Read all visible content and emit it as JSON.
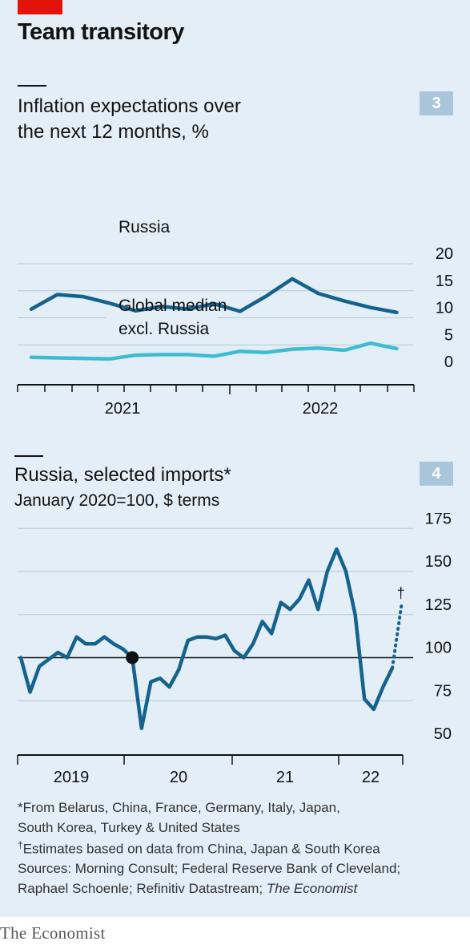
{
  "header": {
    "title": "Team transitory"
  },
  "chart_data": [
    {
      "type": "line",
      "badge": "3",
      "title_lines": [
        "Inflation expectations over",
        "the next 12 months, %"
      ],
      "subtitle": "",
      "x_tick_labels": [
        "2021",
        "2022"
      ],
      "y_ticks": [
        0,
        5,
        10,
        15,
        20
      ],
      "ylim": [
        0,
        20
      ],
      "grid": true,
      "series": [
        {
          "name": "Russia",
          "color": "#15628c",
          "x": [
            "2020-10",
            "2020-11",
            "2020-12",
            "2021-01",
            "2021-02",
            "2021-03",
            "2021-04",
            "2021-05",
            "2021-06",
            "2021-07",
            "2021-08",
            "2021-09",
            "2021-10",
            "2021-11",
            "2021-12",
            "2022-01"
          ],
          "values": [
            11.6,
            14.3,
            13.9,
            12.7,
            11.3,
            12.1,
            11.6,
            12.6,
            11.2,
            14.0,
            17.2,
            14.5,
            13.1,
            11.9,
            11.0,
            null
          ]
        },
        {
          "name": "Global median excl. Russia",
          "label_lines": [
            "Global median",
            "excl. Russia"
          ],
          "color": "#3ebcd2",
          "x": [
            "2020-10",
            "2020-11",
            "2020-12",
            "2021-01",
            "2021-02",
            "2021-03",
            "2021-04",
            "2021-05",
            "2021-06",
            "2021-07",
            "2021-08",
            "2021-09",
            "2021-10",
            "2021-11",
            "2021-12",
            "2022-01"
          ],
          "values": [
            2.7,
            2.6,
            2.5,
            2.4,
            3.1,
            3.2,
            3.2,
            2.9,
            3.8,
            3.6,
            4.2,
            4.4,
            4.0,
            5.3,
            4.3,
            null
          ]
        }
      ]
    },
    {
      "type": "line",
      "badge": "4",
      "title_lines": [
        "Russia, selected imports*"
      ],
      "subtitle": "January 2020=100, $ terms",
      "x_tick_labels": [
        "2019",
        "20",
        "21",
        "22"
      ],
      "y_ticks": [
        50,
        75,
        100,
        125,
        150,
        175
      ],
      "ylim": [
        50,
        175
      ],
      "grid": true,
      "reference_value": 100,
      "reference_point": {
        "x": "2020-01",
        "value": 100
      },
      "series": [
        {
          "name": "Russia, selected imports",
          "color": "#15628c",
          "x": [
            "2019-01",
            "2019-02",
            "2019-03",
            "2019-04",
            "2019-05",
            "2019-06",
            "2019-07",
            "2019-08",
            "2019-09",
            "2019-10",
            "2019-11",
            "2019-12",
            "2020-01",
            "2020-02",
            "2020-03",
            "2020-04",
            "2020-05",
            "2020-06",
            "2020-07",
            "2020-08",
            "2020-09",
            "2020-10",
            "2020-11",
            "2020-12",
            "2021-01",
            "2021-02",
            "2021-03",
            "2021-04",
            "2021-05",
            "2021-06",
            "2021-07",
            "2021-08",
            "2021-09",
            "2021-10",
            "2021-11",
            "2021-12",
            "2022-01",
            "2022-02",
            "2022-03",
            "2022-04",
            "2022-05"
          ],
          "values": [
            100,
            80,
            95,
            99,
            103,
            100,
            112,
            108,
            108,
            112,
            108,
            105,
            100,
            59,
            86,
            88,
            83,
            93,
            110,
            112,
            112,
            111,
            113,
            104,
            100,
            108,
            121,
            114,
            132,
            128,
            134,
            145,
            128,
            150,
            163,
            150,
            125,
            76,
            70,
            83,
            94
          ]
        },
        {
          "name": "Estimates",
          "marker": "†",
          "style": "dotted",
          "color": "#15628c",
          "x": [
            "2022-05",
            "2022-06"
          ],
          "values": [
            94,
            131
          ]
        }
      ]
    }
  ],
  "footnotes": {
    "star_line1": "*From Belarus, China, France, Germany, Italy, Japan,",
    "star_line2": "South Korea, Turkey & United States",
    "dagger_symbol": "†",
    "dagger_text": "Estimates based on data from China, Japan & South Korea",
    "sources_line1": "Sources: Morning Consult; Federal Reserve Bank of Cleveland;",
    "sources_line2_prefix": "Raphael Schoenle; Refinitiv Datastream; ",
    "sources_line2_italic": "The Economist"
  },
  "brand": {
    "logo": "The Economist",
    "accent": "#e3120b",
    "panel_background": "#e3eef7"
  }
}
